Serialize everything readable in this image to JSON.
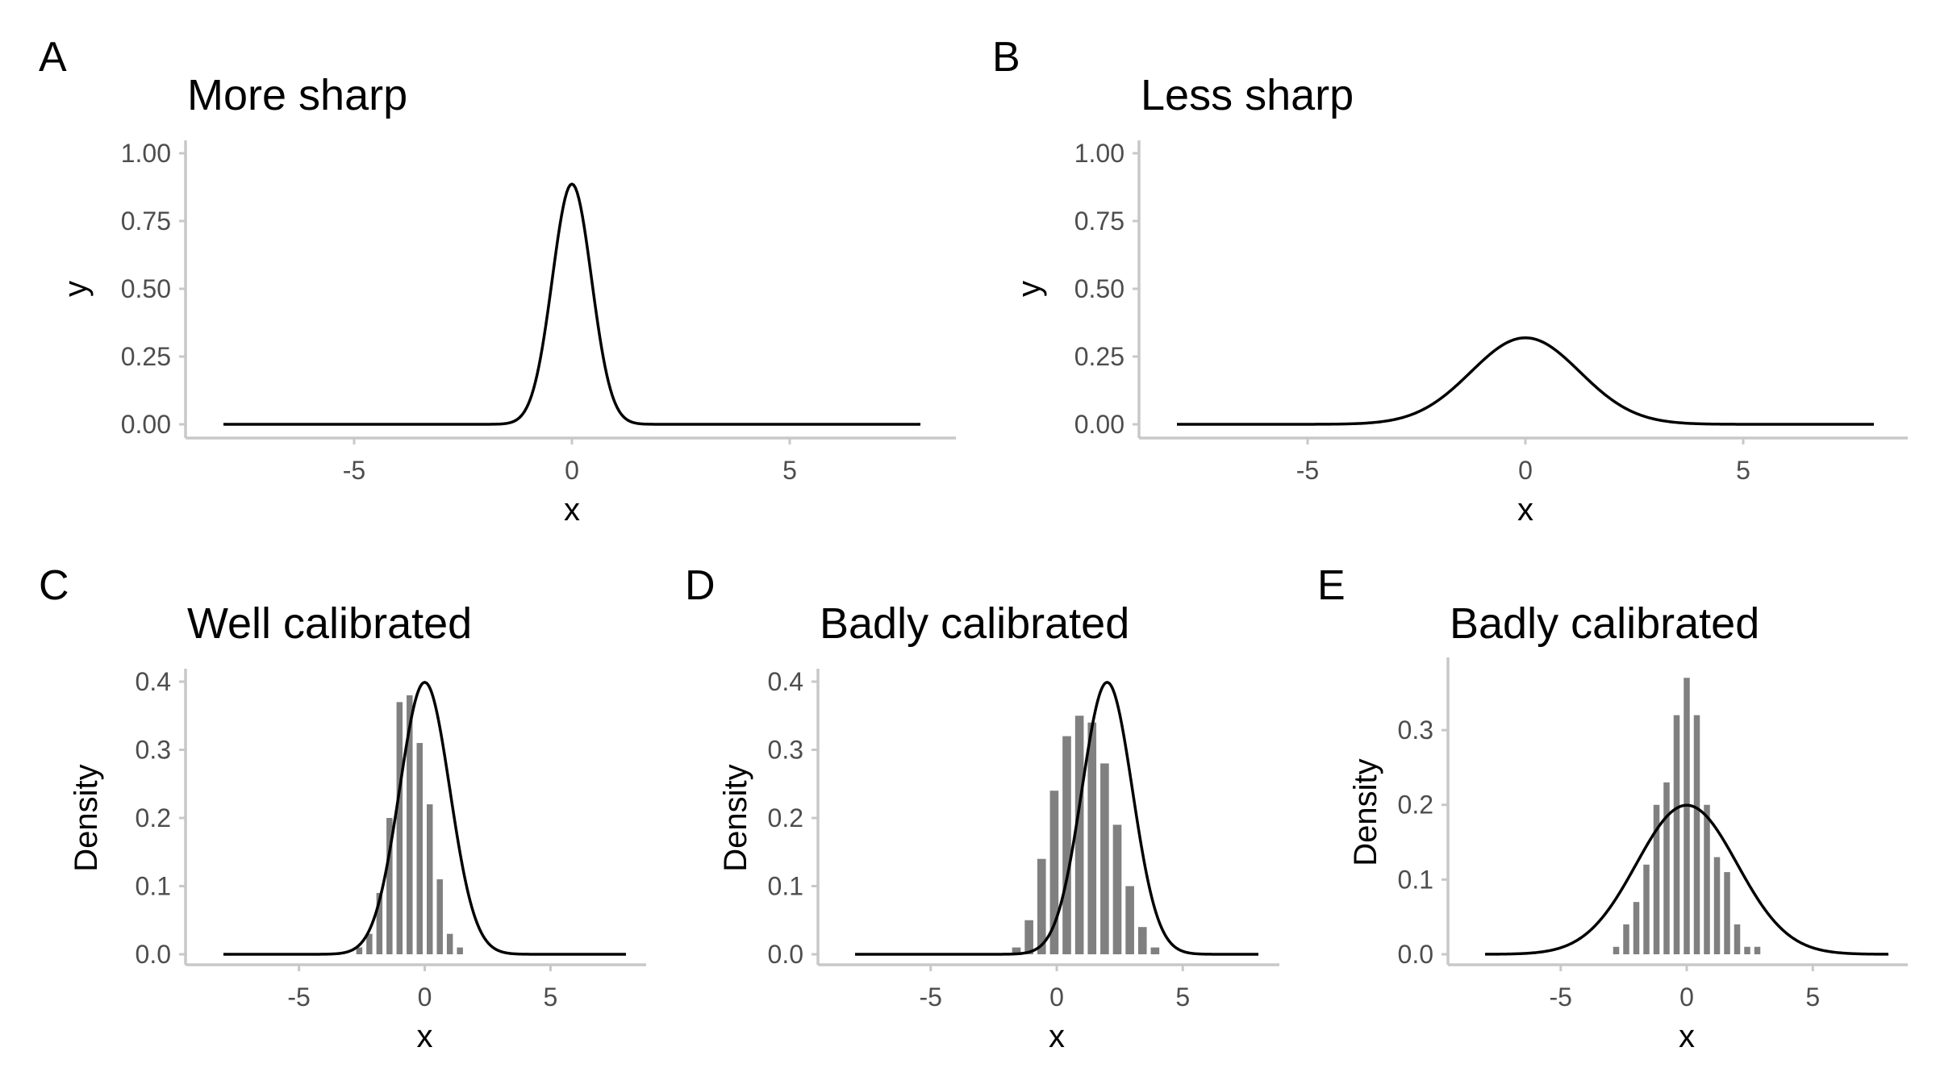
{
  "chart_data": [
    {
      "id": "A",
      "tag": "A",
      "title": "More sharp",
      "type": "line",
      "xlabel": "x",
      "ylabel": "y",
      "xlim": [
        -8,
        8
      ],
      "ylim": [
        0,
        1
      ],
      "xticks": [
        -5,
        0,
        5
      ],
      "xtick_labels": [
        "-5",
        "0",
        "5"
      ],
      "yticks": [
        0,
        0.25,
        0.5,
        0.75,
        1.0
      ],
      "ytick_labels": [
        "0.00",
        "0.25",
        "0.50",
        "0.75",
        "1.00"
      ],
      "curve": {
        "kind": "normal",
        "mean": 0,
        "sd": 0.45,
        "x_range": [
          -8,
          8
        ]
      },
      "grid": false,
      "legend": "none"
    },
    {
      "id": "B",
      "tag": "B",
      "title": "Less sharp",
      "type": "line",
      "xlabel": "x",
      "ylabel": "y",
      "xlim": [
        -8,
        8
      ],
      "ylim": [
        0,
        1
      ],
      "xticks": [
        -5,
        0,
        5
      ],
      "xtick_labels": [
        "-5",
        "0",
        "5"
      ],
      "yticks": [
        0,
        0.25,
        0.5,
        0.75,
        1.0
      ],
      "ytick_labels": [
        "0.00",
        "0.25",
        "0.50",
        "0.75",
        "1.00"
      ],
      "curve": {
        "kind": "normal",
        "mean": 0,
        "sd": 1.25,
        "x_range": [
          -8,
          8
        ]
      },
      "grid": false,
      "legend": "none"
    },
    {
      "id": "C",
      "tag": "C",
      "title": "Well calibrated",
      "type": "bar",
      "xlabel": "x",
      "ylabel": "Density",
      "xlim": [
        -8,
        8
      ],
      "ylim": [
        0,
        0.4
      ],
      "xticks": [
        -5,
        0,
        5
      ],
      "xtick_labels": [
        "-5",
        "0",
        "5"
      ],
      "yticks": [
        0,
        0.1,
        0.2,
        0.3,
        0.4
      ],
      "ytick_labels": [
        "0.0",
        "0.1",
        "0.2",
        "0.3",
        "0.4"
      ],
      "histogram": {
        "bin_width": 0.4,
        "bin_centers": [
          -2.6,
          -2.2,
          -1.8,
          -1.4,
          -1.0,
          -0.6,
          -0.2,
          0.2,
          0.6,
          1.0,
          1.4,
          1.8,
          2.2,
          2.6
        ],
        "values": [
          0.01,
          0.03,
          0.09,
          0.2,
          0.37,
          0.38,
          0.31,
          0.22,
          0.11,
          0.03,
          0.01,
          0.0,
          0.0,
          0.0
        ]
      },
      "curve": {
        "kind": "normal",
        "mean": 0,
        "sd": 1,
        "x_range": [
          -8,
          8
        ]
      },
      "grid": false,
      "legend": "none"
    },
    {
      "id": "D",
      "tag": "D",
      "title": "Badly calibrated",
      "type": "bar",
      "xlabel": "x",
      "ylabel": "Density",
      "xlim": [
        -8,
        8
      ],
      "ylim": [
        0,
        0.4
      ],
      "xticks": [
        -5,
        0,
        5
      ],
      "xtick_labels": [
        "-5",
        "0",
        "5"
      ],
      "yticks": [
        0,
        0.1,
        0.2,
        0.3,
        0.4
      ],
      "ytick_labels": [
        "0.0",
        "0.1",
        "0.2",
        "0.3",
        "0.4"
      ],
      "histogram": {
        "bin_width": 0.5,
        "bin_centers": [
          -1.6,
          -1.1,
          -0.6,
          -0.1,
          0.4,
          0.9,
          1.4,
          1.9,
          2.4,
          2.9,
          3.4,
          3.9
        ],
        "values": [
          0.01,
          0.05,
          0.14,
          0.24,
          0.32,
          0.35,
          0.34,
          0.28,
          0.19,
          0.1,
          0.04,
          0.01
        ]
      },
      "curve": {
        "kind": "normal",
        "mean": 2,
        "sd": 1,
        "x_range": [
          -8,
          8
        ]
      },
      "grid": false,
      "legend": "none"
    },
    {
      "id": "E",
      "tag": "E",
      "title": "Badly calibrated",
      "type": "bar",
      "xlabel": "x",
      "ylabel": "Density",
      "xlim": [
        -8,
        8
      ],
      "ylim": [
        0,
        0.38
      ],
      "xticks": [
        -5,
        0,
        5
      ],
      "xtick_labels": [
        "-5",
        "0",
        "5"
      ],
      "yticks": [
        0,
        0.1,
        0.2,
        0.3
      ],
      "ytick_labels": [
        "0.0",
        "0.1",
        "0.2",
        "0.3"
      ],
      "histogram": {
        "bin_width": 0.4,
        "bin_centers": [
          -2.8,
          -2.4,
          -2.0,
          -1.6,
          -1.2,
          -0.8,
          -0.4,
          0.0,
          0.4,
          0.8,
          1.2,
          1.6,
          2.0,
          2.4,
          2.8
        ],
        "values": [
          0.01,
          0.04,
          0.07,
          0.12,
          0.2,
          0.23,
          0.32,
          0.37,
          0.32,
          0.2,
          0.13,
          0.11,
          0.04,
          0.01,
          0.01
        ]
      },
      "curve": {
        "kind": "normal",
        "mean": 0,
        "sd": 2,
        "x_range": [
          -8,
          8
        ]
      },
      "grid": false,
      "legend": "none"
    }
  ]
}
